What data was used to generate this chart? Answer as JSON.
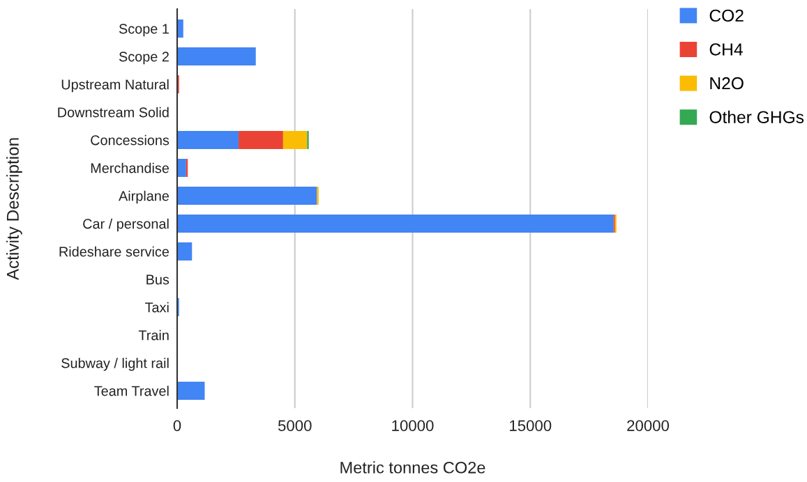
{
  "chart_data": {
    "type": "bar",
    "orientation": "horizontal",
    "stacked": true,
    "categories": [
      "Scope 1",
      "Scope 2",
      "Upstream Natural",
      "Downstream Solid",
      "Concessions",
      "Merchandise",
      "Airplane",
      "Car / personal",
      "Rideshare service",
      "Bus",
      "Taxi",
      "Train",
      "Subway / light rail",
      "Team Travel"
    ],
    "series": [
      {
        "name": "CO2",
        "color": "#4285f4",
        "values": [
          260,
          3340,
          0,
          0,
          2610,
          380,
          5940,
          18540,
          630,
          0,
          80,
          0,
          0,
          1170
        ]
      },
      {
        "name": "CH4",
        "color": "#ea4335",
        "values": [
          0,
          0,
          80,
          0,
          1890,
          70,
          0,
          60,
          0,
          0,
          0,
          0,
          0,
          0
        ]
      },
      {
        "name": "N2O",
        "color": "#fbbc04",
        "values": [
          0,
          0,
          0,
          0,
          1020,
          0,
          70,
          60,
          0,
          0,
          0,
          0,
          0,
          0
        ]
      },
      {
        "name": "Other GHGs",
        "color": "#34a853",
        "values": [
          0,
          0,
          0,
          0,
          70,
          0,
          0,
          0,
          0,
          0,
          0,
          0,
          0,
          0
        ]
      }
    ],
    "xlim": [
      0,
      20000
    ],
    "xticks": [
      0,
      5000,
      10000,
      15000,
      20000
    ],
    "xlabel": "Metric tonnes CO2e",
    "ylabel": "Activity Description",
    "grid": "x",
    "legend": "top right"
  }
}
